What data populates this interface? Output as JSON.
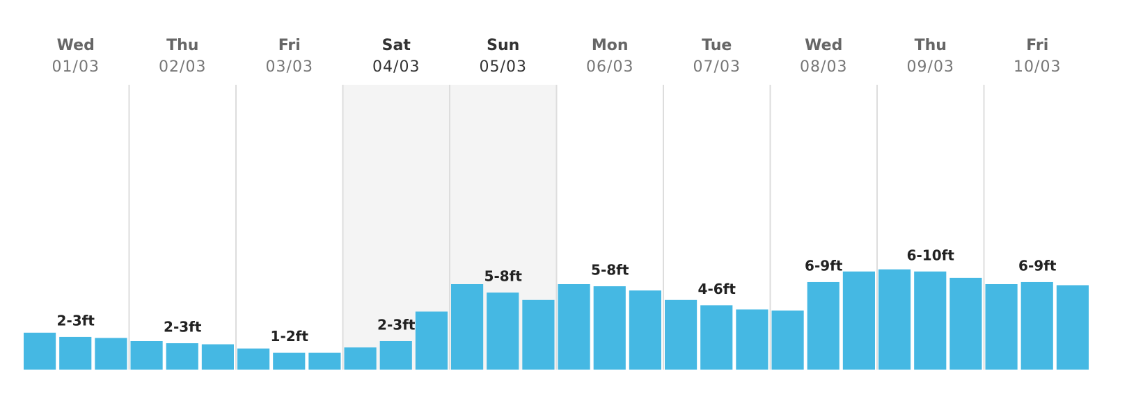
{
  "chart_data": {
    "type": "bar",
    "color": "#45b8e3",
    "weekend_shade": "#f4f4f4",
    "ylim": [
      0,
      27
    ],
    "days": [
      {
        "name": "Wed",
        "date": "01/03",
        "label": "2-3ft",
        "weekend": false,
        "values": [
          3.5,
          3.1,
          3.0
        ]
      },
      {
        "name": "Thu",
        "date": "02/03",
        "label": "2-3ft",
        "weekend": false,
        "values": [
          2.7,
          2.5,
          2.4
        ]
      },
      {
        "name": "Fri",
        "date": "03/03",
        "label": "1-2ft",
        "weekend": false,
        "values": [
          2.0,
          1.6,
          1.6
        ]
      },
      {
        "name": "Sat",
        "date": "04/03",
        "label": "2-3ft",
        "weekend": true,
        "values": [
          2.1,
          2.7,
          5.5
        ]
      },
      {
        "name": "Sun",
        "date": "05/03",
        "label": "5-8ft",
        "weekend": true,
        "values": [
          8.1,
          7.3,
          6.6
        ]
      },
      {
        "name": "Mon",
        "date": "06/03",
        "label": "5-8ft",
        "weekend": false,
        "values": [
          8.1,
          7.9,
          7.5
        ]
      },
      {
        "name": "Tue",
        "date": "07/03",
        "label": "4-6ft",
        "weekend": false,
        "values": [
          6.6,
          6.1,
          5.7
        ]
      },
      {
        "name": "Wed",
        "date": "08/03",
        "label": "6-9ft",
        "weekend": false,
        "values": [
          5.6,
          8.3,
          9.3
        ]
      },
      {
        "name": "Thu",
        "date": "09/03",
        "label": "6-10ft",
        "weekend": false,
        "values": [
          9.5,
          9.3,
          8.7
        ]
      },
      {
        "name": "Fri",
        "date": "10/03",
        "label": "6-9ft",
        "weekend": false,
        "values": [
          8.1,
          8.3,
          8.0
        ]
      }
    ]
  }
}
